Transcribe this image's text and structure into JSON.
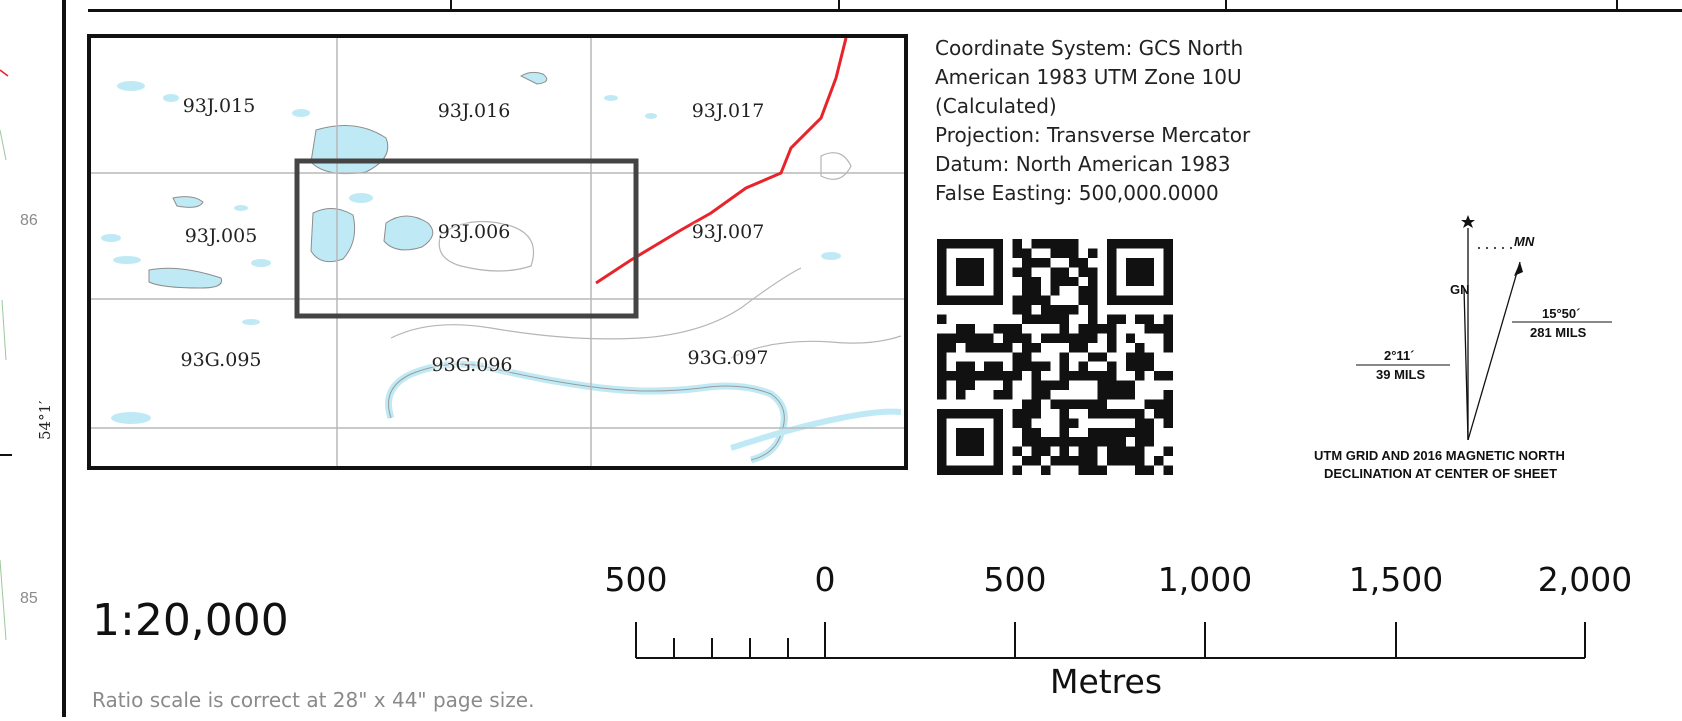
{
  "left_margin": {
    "grid_ticks": [
      "86",
      "85"
    ],
    "latitude_label": "54°1′"
  },
  "index_map": {
    "sheets": [
      {
        "id": "93J.015"
      },
      {
        "id": "93J.016"
      },
      {
        "id": "93J.017"
      },
      {
        "id": "93J.005"
      },
      {
        "id": "93J.006"
      },
      {
        "id": "93J.007"
      },
      {
        "id": "93G.095"
      },
      {
        "id": "93G.096"
      },
      {
        "id": "93G.097"
      }
    ],
    "colors": {
      "water": "#bfeaf5",
      "grid": "#b8b8b8",
      "road": "#e8242b",
      "extent": "#444444",
      "contour": "#b5b5b5"
    }
  },
  "metadata": {
    "lines": [
      "Coordinate System: GCS North",
      "American 1983 UTM Zone 10U",
      "(Calculated)",
      "Projection: Transverse Mercator",
      "Datum: North American 1983",
      "False Easting: 500,000.0000"
    ]
  },
  "declination": {
    "gn_label": "GN",
    "mn_label": "MN",
    "left_angle": "2°11´",
    "left_mils": "39 MILS",
    "right_angle": "15°50´",
    "right_mils": "281 MILS",
    "caption_line1": "UTM GRID AND 2016 MAGNETIC NORTH",
    "caption_line2": "DECLINATION AT CENTER OF SHEET"
  },
  "ratio_scale": {
    "value": "1:20,000",
    "note": "Ratio scale is correct at 28\" x 44\" page size."
  },
  "scale_bar": {
    "labels": [
      "500",
      "0",
      "500",
      "1,000",
      "1,500",
      "2,000"
    ],
    "unit": "Metres"
  }
}
